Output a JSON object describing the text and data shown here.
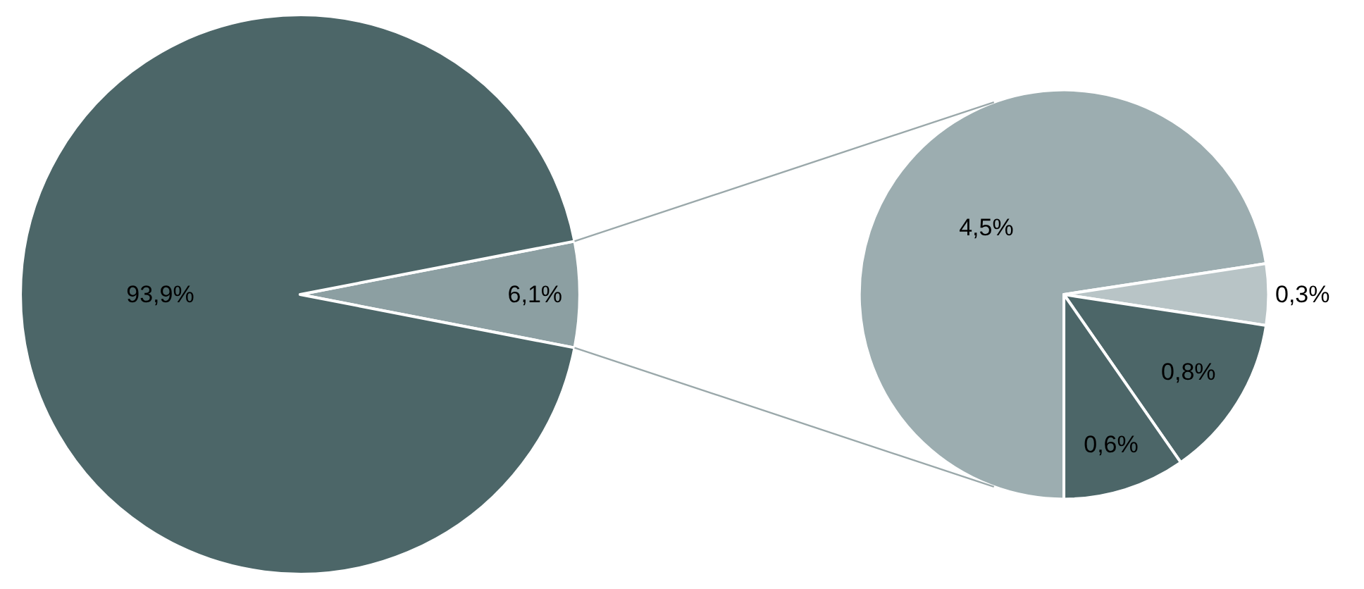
{
  "chart_data": [
    {
      "type": "pie",
      "categories": [
        null,
        null
      ],
      "values": [
        6.1,
        93.9
      ],
      "colors": [
        "#8c9fa2",
        "#4c6668"
      ],
      "value_labels": [
        "6,1%",
        "93,9%"
      ]
    },
    {
      "type": "pie",
      "categories": [
        null,
        null,
        null,
        null
      ],
      "values": [
        4.5,
        0.3,
        0.8,
        0.6
      ],
      "colors": [
        "#9cadb0",
        "#b8c4c6",
        "#4c6668",
        "#4c6668"
      ],
      "value_labels": [
        "4,5%",
        "0,3%",
        "0,8%",
        "0,6%"
      ]
    }
  ]
}
